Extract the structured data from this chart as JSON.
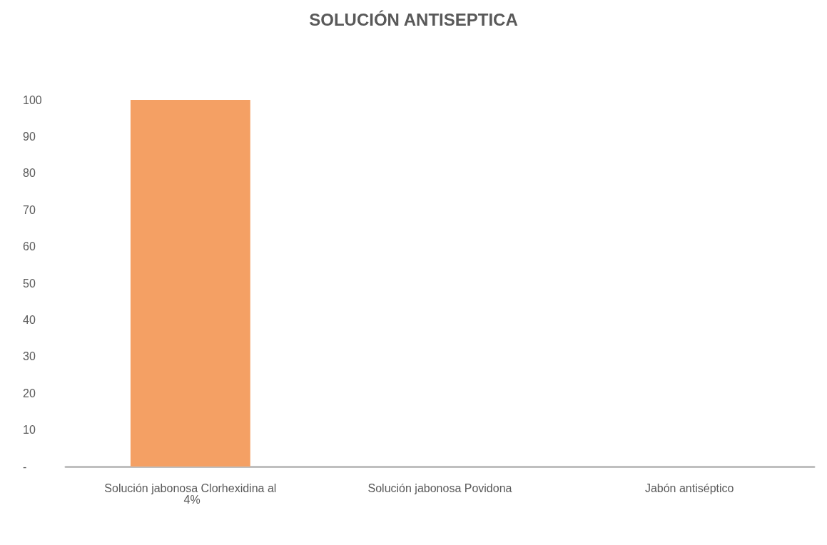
{
  "chart_data": {
    "type": "bar",
    "title": "SOLUCIÓN ANTISEPTICA",
    "categories": [
      "Solución jabonosa Clorhexidina al 4%",
      "Solución jabonosa Povidona",
      "Jabón antiséptico"
    ],
    "values": [
      100,
      0,
      0
    ],
    "color": "#f4a064",
    "ylim": [
      0,
      100
    ],
    "yticks": [
      {
        "value": 0,
        "label": "-"
      },
      10,
      20,
      30,
      40,
      50,
      60,
      70,
      80,
      90,
      100
    ]
  }
}
